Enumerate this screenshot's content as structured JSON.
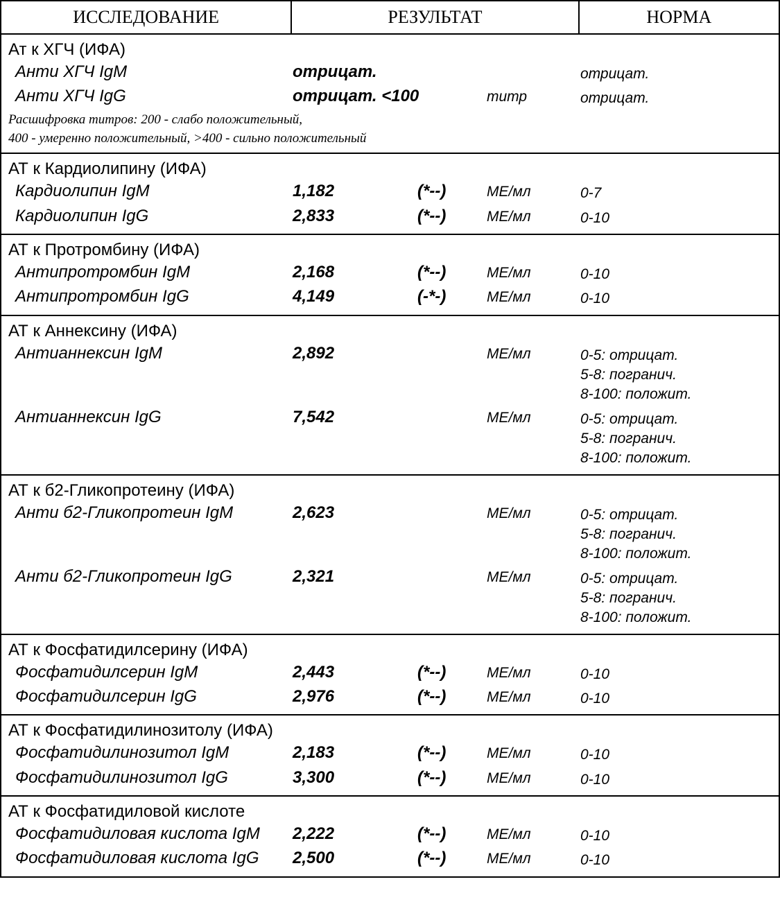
{
  "header": {
    "test": "ИССЛЕДОВАНИЕ",
    "result": "РЕЗУЛЬТАТ",
    "norm": "НОРМА"
  },
  "sections": {
    "hgch": {
      "title": "Ат к ХГЧ (ИФА)",
      "igm": {
        "name": "Анти ХГЧ IgM",
        "value": "отрицат.",
        "unit": "",
        "norm": "отрицат."
      },
      "igg": {
        "name": "Анти ХГЧ IgG",
        "value": "отрицат. <100",
        "unit": "титр",
        "norm": "отрицат."
      },
      "note1": "Расшифровка титров:  200  -  слабо положительный,",
      "note2": "400  -  умеренно положительный,  >400  -  сильно положительный"
    },
    "cardio": {
      "title": "АТ к Кардиолипину (ИФА)",
      "igm": {
        "name": "Кардиолипин IgM",
        "value": "1,182",
        "marker": "(*--)",
        "unit": "МЕ/мл",
        "norm": "0-7"
      },
      "igg": {
        "name": "Кардиолипин IgG",
        "value": "2,833",
        "marker": "(*--)",
        "unit": "МЕ/мл",
        "norm": "0-10"
      }
    },
    "protromb": {
      "title": "АТ к Протромбину (ИФА)",
      "igm": {
        "name": "Антипротромбин IgM",
        "value": "2,168",
        "marker": "(*--)",
        "unit": "МЕ/мл",
        "norm": "0-10"
      },
      "igg": {
        "name": "Антипротромбин IgG",
        "value": "4,149",
        "marker": "(-*-)",
        "unit": "МЕ/мл",
        "norm": "0-10"
      }
    },
    "annexin": {
      "title": "АТ к Аннексину (ИФА)",
      "igm": {
        "name": "Антианнексин IgM",
        "value": "2,892",
        "unit": "МЕ/мл",
        "norm1": "0-5: отрицат.",
        "norm2": "5-8: погранич.",
        "norm3": "8-100: положит."
      },
      "igg": {
        "name": "Антианнексин IgG",
        "value": "7,542",
        "unit": "МЕ/мл",
        "norm1": "0-5: отрицат.",
        "norm2": "5-8: погранич.",
        "norm3": "8-100: положит."
      }
    },
    "b2glyco": {
      "title": "АТ к б2-Гликопротеину (ИФА)",
      "igm": {
        "name": "Анти б2-Гликопротеин IgM",
        "value": "2,623",
        "unit": "МЕ/мл",
        "norm1": "0-5: отрицат.",
        "norm2": "5-8: погранич.",
        "norm3": "8-100: положит."
      },
      "igg": {
        "name": "Анти б2-Гликопротеин IgG",
        "value": "2,321",
        "unit": "МЕ/мл",
        "norm1": "0-5: отрицат.",
        "norm2": "5-8: погранич.",
        "norm3": "8-100: положит."
      }
    },
    "phserin": {
      "title": "АТ к Фосфатидилсерину (ИФА)",
      "igm": {
        "name": "Фосфатидилсерин IgM",
        "value": "2,443",
        "marker": "(*--)",
        "unit": "МЕ/мл",
        "norm": "0-10"
      },
      "igg": {
        "name": "Фосфатидилсерин IgG",
        "value": "2,976",
        "marker": "(*--)",
        "unit": "МЕ/мл",
        "norm": "0-10"
      }
    },
    "phinositol": {
      "title": "АТ к Фосфатидилинозитолу (ИФА)",
      "igm": {
        "name": "Фосфатидилинозитол IgM",
        "value": "2,183",
        "marker": "(*--)",
        "unit": "МЕ/мл",
        "norm": "0-10"
      },
      "igg": {
        "name": "Фосфатидилинозитол IgG",
        "value": "3,300",
        "marker": "(*--)",
        "unit": "МЕ/мл",
        "norm": "0-10"
      }
    },
    "phacid": {
      "title": "АТ к Фосфатидиловой кислоте",
      "igm": {
        "name": "Фосфатидиловая кислота IgM",
        "value": "2,222",
        "marker": "(*--)",
        "unit": "МЕ/мл",
        "norm": "0-10"
      },
      "igg": {
        "name": "Фосфатидиловая кислота IgG",
        "value": "2,500",
        "marker": "(*--)",
        "unit": "МЕ/мл",
        "norm": "0-10"
      }
    }
  }
}
